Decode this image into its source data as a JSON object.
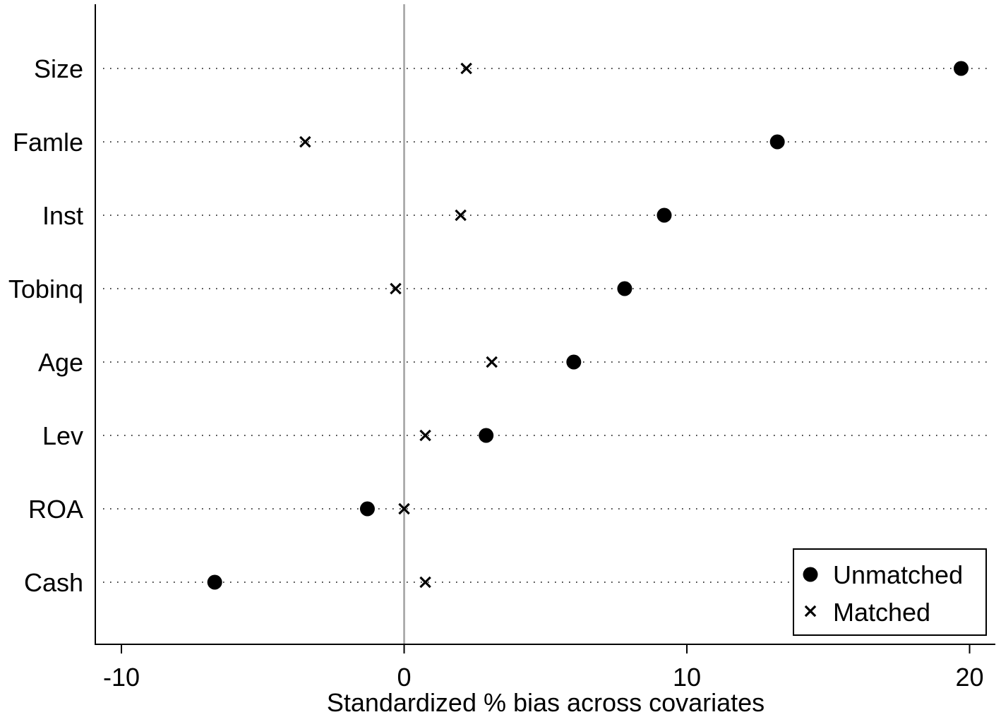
{
  "chart_data": {
    "type": "scatter",
    "title": "",
    "xlabel": "Standardized % bias across covariates",
    "ylabel": "",
    "xlim": [
      -11,
      20.8
    ],
    "xticks": [
      -10,
      0,
      10,
      20
    ],
    "xtick_labels": [
      "-10",
      "0",
      "10",
      "20"
    ],
    "reference_line": 0,
    "grid": "dotted horizontal guide per covariate",
    "legend_position": "bottom-right",
    "categories": [
      "Size",
      "Famle",
      "Inst",
      "Tobinq",
      "Age",
      "Lev",
      "ROA",
      "Cash"
    ],
    "series": [
      {
        "name": "Unmatched",
        "marker": "filled-circle",
        "values": [
          19.7,
          13.2,
          9.2,
          7.8,
          6.0,
          2.9,
          -1.3,
          -6.7
        ]
      },
      {
        "name": "Matched",
        "marker": "x-cross",
        "values": [
          2.2,
          -3.5,
          2.0,
          -0.3,
          3.1,
          0.75,
          0.0,
          0.75
        ]
      }
    ],
    "colors": {
      "marks": "#000000",
      "reference_line": "#a0a0a0",
      "background": "#ffffff"
    }
  }
}
